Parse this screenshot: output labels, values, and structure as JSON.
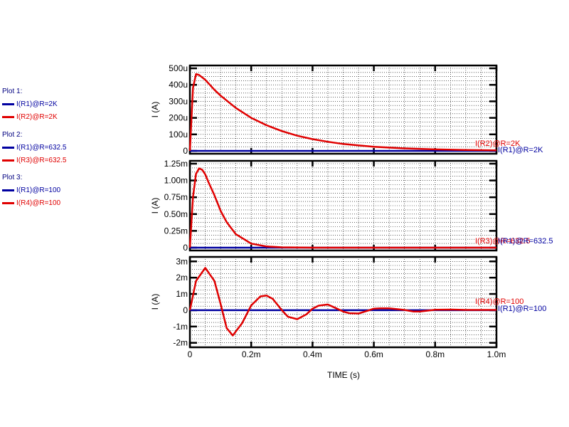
{
  "legend": {
    "groups": [
      {
        "heading": "Plot 1:",
        "items": [
          {
            "label": "I(R1)@R=2K",
            "color": "#0000a0"
          },
          {
            "label": "I(R2)@R=2K",
            "color": "#e00000"
          }
        ]
      },
      {
        "heading": "Plot 2:",
        "items": [
          {
            "label": "I(R1)@R=632.5",
            "color": "#0000a0"
          },
          {
            "label": "I(R3)@R=632.5",
            "color": "#e00000"
          }
        ]
      },
      {
        "heading": "Plot 3:",
        "items": [
          {
            "label": "I(R1)@R=100",
            "color": "#0000a0"
          },
          {
            "label": "I(R4)@R=100",
            "color": "#e00000"
          }
        ]
      }
    ]
  },
  "colors": {
    "series_blue": "#0000a0",
    "series_red": "#e00000",
    "axis": "#000000",
    "grid": "#000000"
  },
  "chart_data": [
    {
      "type": "line",
      "xlabel": "TIME  (s)",
      "ylabel": "I   (A)",
      "xlim": [
        0,
        0.001
      ],
      "ylim": [
        0,
        0.0005
      ],
      "xticks": [
        0,
        0.0002,
        0.0004,
        0.0006,
        0.0008,
        0.001
      ],
      "xtick_labels": [
        "0",
        "0.2m",
        "0.4m",
        "0.6m",
        "0.8m",
        "1.0m"
      ],
      "yticks": [
        0,
        0.0001,
        0.0002,
        0.0003,
        0.0004,
        0.0005
      ],
      "ytick_labels": [
        "0",
        "100u",
        "200u",
        "300u",
        "400u",
        "500u"
      ],
      "grid": true,
      "series": [
        {
          "name": "I(R2)@R=2K",
          "color": "#e00000",
          "x": [
            0,
            1e-05,
            2e-05,
            3e-05,
            5e-05,
            8e-05,
            0.0001,
            0.00015,
            0.0002,
            0.00025,
            0.0003,
            0.00035,
            0.0004,
            0.00045,
            0.0005,
            0.0006,
            0.0007,
            0.0008,
            0.0009,
            0.001
          ],
          "y": [
            0,
            0.00038,
            0.000465,
            0.00046,
            0.00043,
            0.00037,
            0.000335,
            0.00026,
            0.0002,
            0.000155,
            0.00012,
            9.2e-05,
            7.1e-05,
            5.5e-05,
            4.2e-05,
            2.5e-05,
            1.5e-05,
            9e-06,
            5e-06,
            3e-06
          ]
        },
        {
          "name": "I(R1)@R=2K",
          "color": "#0000a0",
          "x": [
            0,
            0.001
          ],
          "y": [
            0,
            0
          ]
        }
      ]
    },
    {
      "type": "line",
      "ylabel": "I   (A)",
      "xlim": [
        0,
        0.001
      ],
      "ylim": [
        0,
        0.00125
      ],
      "xticks": [
        0,
        0.0002,
        0.0004,
        0.0006,
        0.0008,
        0.001
      ],
      "yticks": [
        0,
        0.00025,
        0.0005,
        0.00075,
        0.001,
        0.00125
      ],
      "ytick_labels": [
        "0",
        "0.25m",
        "0.50m",
        "0.75m",
        "1.00m",
        "1.25m"
      ],
      "grid": true,
      "series": [
        {
          "name": "I(R3)@R=632.5",
          "color": "#e00000",
          "x": [
            0,
            1e-05,
            2e-05,
            3e-05,
            4e-05,
            5e-05,
            6e-05,
            8e-05,
            0.0001,
            0.00012,
            0.00015,
            0.0002,
            0.00025,
            0.0003,
            0.0004,
            0.0006,
            0.0008,
            0.001
          ],
          "y": [
            0,
            0.00075,
            0.0011,
            0.00118,
            0.00116,
            0.00109,
            0.00098,
            0.00078,
            0.00055,
            0.00038,
            0.0002,
            6e-05,
            1.8e-05,
            5e-06,
            0,
            0,
            0,
            0
          ]
        },
        {
          "name": "I(R1)@R=632.5",
          "color": "#0000a0",
          "x": [
            0,
            0.001
          ],
          "y": [
            0,
            0
          ]
        }
      ]
    },
    {
      "type": "line",
      "ylabel": "I   (A)",
      "xlim": [
        0,
        0.001
      ],
      "ylim": [
        -0.0021,
        0.0031
      ],
      "xticks": [
        0,
        0.0002,
        0.0004,
        0.0006,
        0.0008,
        0.001
      ],
      "yticks": [
        -0.002,
        -0.001,
        0,
        0.001,
        0.002,
        0.003
      ],
      "ytick_labels": [
        "-2m",
        "-1m",
        "0",
        "1m",
        "2m",
        "3m"
      ],
      "grid": true,
      "series": [
        {
          "name": "I(R4)@R=100",
          "color": "#e00000",
          "x": [
            0,
            2e-05,
            5e-05,
            8e-05,
            0.0001,
            0.00012,
            0.00014,
            0.00017,
            0.0002,
            0.00023,
            0.00025,
            0.00027,
            0.0003,
            0.00032,
            0.00035,
            0.00038,
            0.0004,
            0.00042,
            0.00045,
            0.00048,
            0.0005,
            0.00052,
            0.00055,
            0.00058,
            0.0006,
            0.00062,
            0.00065,
            0.0007,
            0.00073,
            0.00075,
            0.0008,
            0.00085,
            0.0009,
            0.001
          ],
          "y": [
            0,
            0.0018,
            0.0026,
            0.0018,
            0.0004,
            -0.0011,
            -0.00155,
            -0.0008,
            0.0003,
            0.00085,
            0.0009,
            0.0007,
            0.0,
            -0.0004,
            -0.00055,
            -0.00025,
            0.0001,
            0.00028,
            0.00035,
            0.0001,
            -8e-05,
            -0.00018,
            -0.0002,
            -3e-05,
            0.0001,
            0.00012,
            0.00012,
            2e-05,
            -8e-05,
            -8e-05,
            3e-05,
            4e-05,
            2e-05,
            2e-05
          ]
        },
        {
          "name": "I(R1)@R=100",
          "color": "#0000a0",
          "x": [
            0,
            0.001
          ],
          "y": [
            0,
            0
          ]
        }
      ]
    }
  ]
}
